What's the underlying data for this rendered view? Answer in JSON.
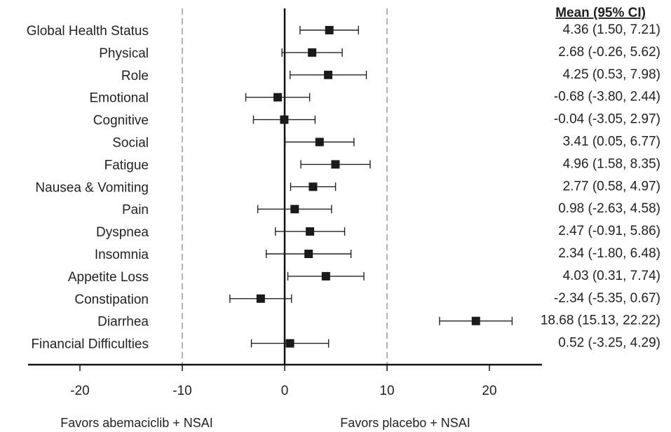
{
  "chart_data": {
    "type": "forest",
    "ci_header": "Mean (95% CI)",
    "rows": [
      {
        "label": "Global Health Status",
        "mean": 4.36,
        "low": 1.5,
        "high": 7.21,
        "ci_text": "4.36 (1.50, 7.21)"
      },
      {
        "label": "Physical",
        "mean": 2.68,
        "low": -0.26,
        "high": 5.62,
        "ci_text": "2.68 (-0.26, 5.62)"
      },
      {
        "label": "Role",
        "mean": 4.25,
        "low": 0.53,
        "high": 7.98,
        "ci_text": "4.25 (0.53, 7.98)"
      },
      {
        "label": "Emotional",
        "mean": -0.68,
        "low": -3.8,
        "high": 2.44,
        "ci_text": "-0.68 (-3.80, 2.44)"
      },
      {
        "label": "Cognitive",
        "mean": -0.04,
        "low": -3.05,
        "high": 2.97,
        "ci_text": "-0.04 (-3.05, 2.97)"
      },
      {
        "label": "Social",
        "mean": 3.41,
        "low": 0.05,
        "high": 6.77,
        "ci_text": "3.41 (0.05, 6.77)"
      },
      {
        "label": "Fatigue",
        "mean": 4.96,
        "low": 1.58,
        "high": 8.35,
        "ci_text": "4.96 (1.58, 8.35)"
      },
      {
        "label": "Nausea & Vomiting",
        "mean": 2.77,
        "low": 0.58,
        "high": 4.97,
        "ci_text": "2.77 (0.58, 4.97)"
      },
      {
        "label": "Pain",
        "mean": 0.98,
        "low": -2.63,
        "high": 4.58,
        "ci_text": "0.98 (-2.63, 4.58)"
      },
      {
        "label": "Dyspnea",
        "mean": 2.47,
        "low": -0.91,
        "high": 5.86,
        "ci_text": "2.47 (-0.91, 5.86)"
      },
      {
        "label": "Insomnia",
        "mean": 2.34,
        "low": -1.8,
        "high": 6.48,
        "ci_text": "2.34 (-1.80, 6.48)"
      },
      {
        "label": "Appetite Loss",
        "mean": 4.03,
        "low": 0.31,
        "high": 7.74,
        "ci_text": "4.03 (0.31, 7.74)"
      },
      {
        "label": "Constipation",
        "mean": -2.34,
        "low": -5.35,
        "high": 0.67,
        "ci_text": "-2.34 (-5.35, 0.67)"
      },
      {
        "label": "Diarrhea",
        "mean": 18.68,
        "low": 15.13,
        "high": 22.22,
        "ci_text": "18.68 (15.13, 22.22)"
      },
      {
        "label": "Financial Difficulties",
        "mean": 0.52,
        "low": -3.25,
        "high": 4.29,
        "ci_text": "0.52 (-3.25, 4.29)"
      }
    ],
    "x_ticks": [
      -20,
      -10,
      0,
      10,
      20
    ],
    "xlim": [
      -25,
      25
    ],
    "reference_lines": [
      -10,
      0,
      10
    ],
    "favors_left": "Favors abemaciclib + NSAI",
    "favors_right": "Favors placebo + NSAI",
    "marker_color": "#1a1a1a",
    "line_color": "#222222"
  }
}
